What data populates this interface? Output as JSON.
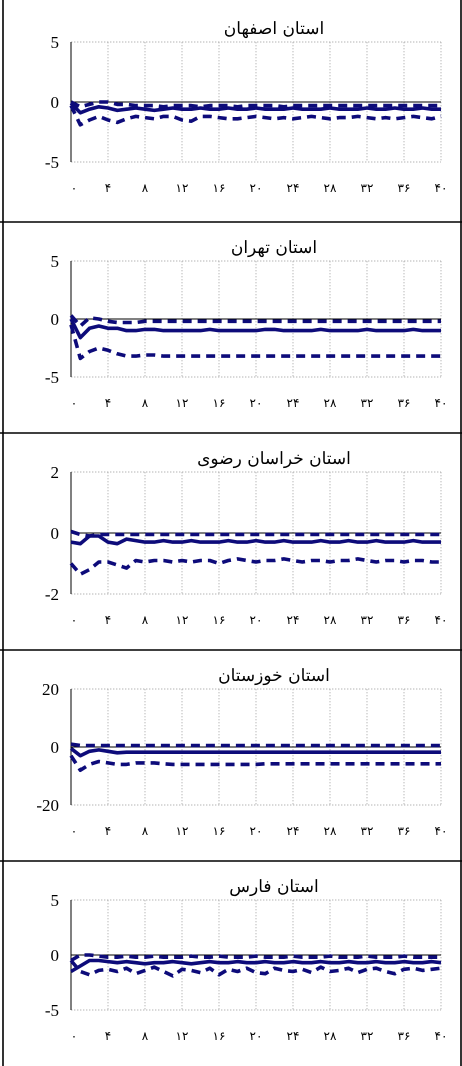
{
  "colors": {
    "line": "#0d0b7a",
    "grid": "#9a9a9a",
    "axis": "#000000"
  },
  "chart_data": [
    {
      "type": "line",
      "title": "استان اصفهان",
      "x": [
        0,
        1,
        2,
        3,
        4,
        5,
        6,
        7,
        8,
        9,
        10,
        11,
        12,
        13,
        14,
        15,
        16,
        17,
        18,
        19,
        20,
        21,
        22,
        23,
        24,
        25,
        26,
        27,
        28,
        29,
        30,
        31,
        32,
        33,
        34,
        35,
        36,
        37,
        38,
        39,
        40
      ],
      "xticks": [
        "۰",
        "۴",
        "۸",
        "۱۲",
        "۱۶",
        "۲۰",
        "۲۴",
        "۲۸",
        "۳۲",
        "۳۶",
        "۴۰"
      ],
      "yticks": [
        "5",
        "0",
        "-5"
      ],
      "ylim": [
        -5,
        5
      ],
      "grid": true,
      "series": [
        {
          "role": "response",
          "values": [
            -0.1,
            -0.9,
            -0.6,
            -0.4,
            -0.5,
            -0.7,
            -0.6,
            -0.5,
            -0.6,
            -0.7,
            -0.6,
            -0.5,
            -0.6,
            -0.6,
            -0.5,
            -0.6,
            -0.6,
            -0.5,
            -0.6,
            -0.6,
            -0.5,
            -0.6,
            -0.6,
            -0.6,
            -0.5,
            -0.6,
            -0.6,
            -0.6,
            -0.5,
            -0.6,
            -0.6,
            -0.6,
            -0.5,
            -0.6,
            -0.6,
            -0.5,
            -0.6,
            -0.6,
            -0.5,
            -0.6,
            -0.6
          ]
        },
        {
          "role": "upper",
          "values": [
            0,
            -0.4,
            -0.2,
            0,
            0,
            -0.2,
            -0.2,
            -0.3,
            -0.3,
            -0.3,
            -0.4,
            -0.3,
            -0.3,
            -0.3,
            -0.4,
            -0.3,
            -0.3,
            -0.3,
            -0.4,
            -0.3,
            -0.3,
            -0.3,
            -0.3,
            -0.4,
            -0.3,
            -0.3,
            -0.3,
            -0.3,
            -0.3,
            -0.3,
            -0.3,
            -0.3,
            -0.3,
            -0.3,
            -0.3,
            -0.3,
            -0.3,
            -0.3,
            -0.3,
            -0.3,
            -0.3
          ]
        },
        {
          "role": "lower",
          "values": [
            -0.3,
            -1.9,
            -1.5,
            -1.2,
            -1.5,
            -1.7,
            -1.4,
            -1.2,
            -1.3,
            -1.4,
            -1.2,
            -1.2,
            -1.5,
            -1.6,
            -1.2,
            -1.2,
            -1.3,
            -1.4,
            -1.4,
            -1.3,
            -1.2,
            -1.3,
            -1.4,
            -1.3,
            -1.4,
            -1.3,
            -1.2,
            -1.3,
            -1.4,
            -1.3,
            -1.3,
            -1.2,
            -1.3,
            -1.4,
            -1.3,
            -1.4,
            -1.3,
            -1.2,
            -1.3,
            -1.4,
            -1.2
          ]
        }
      ]
    },
    {
      "type": "line",
      "title": "استان تهران",
      "x": [
        0,
        1,
        2,
        3,
        4,
        5,
        6,
        7,
        8,
        9,
        10,
        11,
        12,
        13,
        14,
        15,
        16,
        17,
        18,
        19,
        20,
        21,
        22,
        23,
        24,
        25,
        26,
        27,
        28,
        29,
        30,
        31,
        32,
        33,
        34,
        35,
        36,
        37,
        38,
        39,
        40
      ],
      "xticks": [
        "۰",
        "۴",
        "۸",
        "۱۲",
        "۱۶",
        "۲۰",
        "۲۴",
        "۲۸",
        "۳۲",
        "۳۶",
        "۴۰"
      ],
      "yticks": [
        "5",
        "0",
        "-5"
      ],
      "ylim": [
        -5,
        5
      ],
      "grid": true,
      "series": [
        {
          "role": "response",
          "values": [
            0,
            -1.6,
            -0.8,
            -0.6,
            -0.8,
            -0.8,
            -1.0,
            -1.0,
            -0.9,
            -0.9,
            -1.0,
            -1.0,
            -1.0,
            -1.0,
            -1.0,
            -0.9,
            -1.0,
            -1.0,
            -1.0,
            -1.0,
            -1.0,
            -0.9,
            -0.9,
            -1.0,
            -1.0,
            -1.0,
            -1.0,
            -0.9,
            -1.0,
            -1.0,
            -1.0,
            -1.0,
            -0.9,
            -1.0,
            -1.0,
            -1.0,
            -1.0,
            -0.9,
            -1.0,
            -1.0,
            -1.0
          ]
        },
        {
          "role": "upper",
          "values": [
            0.3,
            -0.6,
            0.1,
            0,
            -0.2,
            -0.3,
            -0.3,
            -0.3,
            -0.2,
            -0.2,
            -0.2,
            -0.2,
            -0.2,
            -0.2,
            -0.2,
            -0.2,
            -0.2,
            -0.2,
            -0.2,
            -0.2,
            -0.2,
            -0.2,
            -0.2,
            -0.2,
            -0.2,
            -0.2,
            -0.2,
            -0.2,
            -0.2,
            -0.2,
            -0.2,
            -0.2,
            -0.2,
            -0.2,
            -0.2,
            -0.2,
            -0.2,
            -0.2,
            -0.2,
            -0.2,
            -0.2
          ]
        },
        {
          "role": "lower",
          "values": [
            -0.5,
            -3.4,
            -2.8,
            -2.5,
            -2.7,
            -3.0,
            -3.2,
            -3.2,
            -3.1,
            -3.1,
            -3.2,
            -3.2,
            -3.2,
            -3.2,
            -3.2,
            -3.2,
            -3.2,
            -3.2,
            -3.2,
            -3.2,
            -3.2,
            -3.2,
            -3.2,
            -3.2,
            -3.2,
            -3.2,
            -3.2,
            -3.2,
            -3.2,
            -3.2,
            -3.2,
            -3.2,
            -3.2,
            -3.2,
            -3.2,
            -3.2,
            -3.2,
            -3.2,
            -3.2,
            -3.2,
            -3.2
          ]
        }
      ]
    },
    {
      "type": "line",
      "title": "استان خراسان رضوی",
      "x": [
        0,
        1,
        2,
        3,
        4,
        5,
        6,
        7,
        8,
        9,
        10,
        11,
        12,
        13,
        14,
        15,
        16,
        17,
        18,
        19,
        20,
        21,
        22,
        23,
        24,
        25,
        26,
        27,
        28,
        29,
        30,
        31,
        32,
        33,
        34,
        35,
        36,
        37,
        38,
        39,
        40
      ],
      "xticks": [
        "۰",
        "۴",
        "۸",
        "۱۲",
        "۱۶",
        "۲۰",
        "۲۴",
        "۲۸",
        "۳۲",
        "۳۶",
        "۴۰"
      ],
      "yticks": [
        "2",
        "0",
        "-2"
      ],
      "ylim": [
        -2,
        2
      ],
      "grid": true,
      "series": [
        {
          "role": "response",
          "values": [
            -0.3,
            -0.35,
            -0.1,
            -0.1,
            -0.3,
            -0.35,
            -0.2,
            -0.25,
            -0.3,
            -0.3,
            -0.25,
            -0.3,
            -0.3,
            -0.25,
            -0.3,
            -0.3,
            -0.3,
            -0.25,
            -0.3,
            -0.3,
            -0.25,
            -0.3,
            -0.3,
            -0.25,
            -0.3,
            -0.3,
            -0.3,
            -0.25,
            -0.3,
            -0.3,
            -0.25,
            -0.3,
            -0.3,
            -0.25,
            -0.3,
            -0.3,
            -0.3,
            -0.25,
            -0.3,
            -0.3,
            -0.3
          ]
        },
        {
          "role": "upper",
          "values": [
            0.05,
            -0.05,
            -0.1,
            -0.05,
            -0.05,
            -0.05,
            -0.05,
            -0.05,
            -0.05,
            -0.05,
            -0.05,
            -0.05,
            -0.05,
            -0.05,
            -0.05,
            -0.05,
            -0.05,
            -0.05,
            -0.05,
            -0.05,
            -0.05,
            -0.05,
            -0.05,
            -0.05,
            -0.05,
            -0.05,
            -0.05,
            -0.05,
            -0.05,
            -0.05,
            -0.05,
            -0.05,
            -0.05,
            -0.05,
            -0.05,
            -0.05,
            -0.05,
            -0.05,
            -0.05,
            -0.05,
            -0.05
          ]
        },
        {
          "role": "lower",
          "values": [
            -1.0,
            -1.35,
            -1.2,
            -0.95,
            -0.95,
            -1.05,
            -1.15,
            -0.9,
            -0.95,
            -0.9,
            -0.9,
            -0.95,
            -0.9,
            -0.95,
            -0.9,
            -0.9,
            -1.0,
            -0.9,
            -0.85,
            -0.9,
            -0.95,
            -0.9,
            -0.9,
            -0.85,
            -0.9,
            -0.95,
            -0.9,
            -0.9,
            -0.95,
            -0.9,
            -0.9,
            -0.85,
            -0.9,
            -0.95,
            -0.9,
            -0.9,
            -0.95,
            -0.9,
            -0.9,
            -0.95,
            -0.95
          ]
        }
      ]
    },
    {
      "type": "line",
      "title": "استان خوزستان",
      "x": [
        0,
        1,
        2,
        3,
        4,
        5,
        6,
        7,
        8,
        9,
        10,
        11,
        12,
        13,
        14,
        15,
        16,
        17,
        18,
        19,
        20,
        21,
        22,
        23,
        24,
        25,
        26,
        27,
        28,
        29,
        30,
        31,
        32,
        33,
        34,
        35,
        36,
        37,
        38,
        39,
        40
      ],
      "xticks": [
        "۰",
        "۴",
        "۸",
        "۱۲",
        "۱۶",
        "۲۰",
        "۲۴",
        "۲۸",
        "۳۲",
        "۳۶",
        "۴۰"
      ],
      "yticks": [
        "20",
        "0",
        "-20"
      ],
      "ylim": [
        -20,
        20
      ],
      "grid": true,
      "series": [
        {
          "role": "response",
          "values": [
            -0.5,
            -3,
            -1.5,
            -1,
            -1.5,
            -2,
            -1.8,
            -1.8,
            -1.8,
            -1.8,
            -1.8,
            -1.8,
            -1.8,
            -1.8,
            -1.8,
            -1.8,
            -1.8,
            -1.8,
            -1.8,
            -1.8,
            -1.8,
            -1.8,
            -1.8,
            -1.8,
            -1.8,
            -1.8,
            -1.8,
            -1.8,
            -1.8,
            -1.8,
            -1.8,
            -1.8,
            -1.8,
            -1.8,
            -1.8,
            -1.8,
            -1.8,
            -1.8,
            -1.8,
            -1.8,
            -1.8
          ]
        },
        {
          "role": "upper",
          "values": [
            1,
            0.5,
            0.5,
            0.5,
            0.5,
            0.5,
            0.5,
            0.5,
            0.5,
            0.5,
            0.5,
            0.5,
            0.5,
            0.5,
            0.5,
            0.5,
            0.5,
            0.5,
            0.5,
            0.5,
            0.5,
            0.5,
            0.5,
            0.5,
            0.5,
            0.5,
            0.5,
            0.5,
            0.5,
            0.5,
            0.5,
            0.5,
            0.5,
            0.5,
            0.5,
            0.5,
            0.5,
            0.5,
            0.5,
            0.5,
            0.5
          ]
        },
        {
          "role": "lower",
          "values": [
            -3,
            -8,
            -6,
            -5,
            -5.5,
            -6,
            -6,
            -5.5,
            -5.5,
            -5.5,
            -5.8,
            -6,
            -6,
            -6,
            -6,
            -6,
            -6,
            -6,
            -6,
            -6,
            -6,
            -5.8,
            -5.8,
            -5.8,
            -5.8,
            -5.8,
            -5.8,
            -5.8,
            -5.8,
            -5.8,
            -5.8,
            -5.8,
            -5.8,
            -5.8,
            -5.8,
            -5.8,
            -5.8,
            -5.8,
            -5.8,
            -5.8,
            -5.8
          ]
        }
      ]
    },
    {
      "type": "line",
      "title": "استان فارس",
      "x": [
        0,
        1,
        2,
        3,
        4,
        5,
        6,
        7,
        8,
        9,
        10,
        11,
        12,
        13,
        14,
        15,
        16,
        17,
        18,
        19,
        20,
        21,
        22,
        23,
        24,
        25,
        26,
        27,
        28,
        29,
        30,
        31,
        32,
        33,
        34,
        35,
        36,
        37,
        38,
        39,
        40
      ],
      "xticks": [
        "۰",
        "۴",
        "۸",
        "۱۲",
        "۱۶",
        "۲۰",
        "۲۴",
        "۲۸",
        "۳۲",
        "۳۶",
        "۴۰"
      ],
      "yticks": [
        "5",
        "0",
        "-5"
      ],
      "ylim": [
        -5,
        5
      ],
      "grid": true,
      "series": [
        {
          "role": "response",
          "values": [
            -1.5,
            -1,
            -0.5,
            -0.5,
            -0.6,
            -0.7,
            -0.6,
            -0.7,
            -0.8,
            -0.7,
            -0.7,
            -0.6,
            -0.7,
            -0.8,
            -0.7,
            -0.6,
            -0.7,
            -0.7,
            -0.6,
            -0.7,
            -0.7,
            -0.6,
            -0.7,
            -0.7,
            -0.6,
            -0.7,
            -0.7,
            -0.6,
            -0.7,
            -0.7,
            -0.6,
            -0.7,
            -0.7,
            -0.6,
            -0.7,
            -0.7,
            -0.6,
            -0.7,
            -0.7,
            -0.6,
            -0.7
          ]
        },
        {
          "role": "upper",
          "values": [
            -0.5,
            0,
            0,
            -0.1,
            -0.2,
            -0.2,
            -0.1,
            -0.2,
            -0.2,
            -0.1,
            -0.2,
            -0.2,
            -0.2,
            -0.1,
            -0.2,
            -0.2,
            -0.1,
            -0.2,
            -0.2,
            -0.2,
            -0.1,
            -0.2,
            -0.2,
            -0.2,
            -0.1,
            -0.2,
            -0.2,
            -0.2,
            -0.1,
            -0.2,
            -0.2,
            -0.2,
            -0.1,
            -0.2,
            -0.2,
            -0.2,
            -0.1,
            -0.2,
            -0.2,
            -0.2,
            -0.2
          ]
        },
        {
          "role": "lower",
          "values": [
            -0.5,
            -1.5,
            -1.8,
            -1.4,
            -1.3,
            -1.5,
            -1.2,
            -1.7,
            -1.4,
            -1.1,
            -1.5,
            -1.9,
            -1.3,
            -1.4,
            -1.6,
            -1.2,
            -1.8,
            -1.3,
            -1.5,
            -1.2,
            -1.6,
            -1.7,
            -1.2,
            -1.4,
            -1.5,
            -1.3,
            -1.6,
            -1.1,
            -1.5,
            -1.4,
            -1.2,
            -1.6,
            -1.3,
            -1.2,
            -1.5,
            -1.7,
            -1.3,
            -1.2,
            -1.4,
            -1.3,
            -1.2
          ]
        }
      ]
    }
  ]
}
